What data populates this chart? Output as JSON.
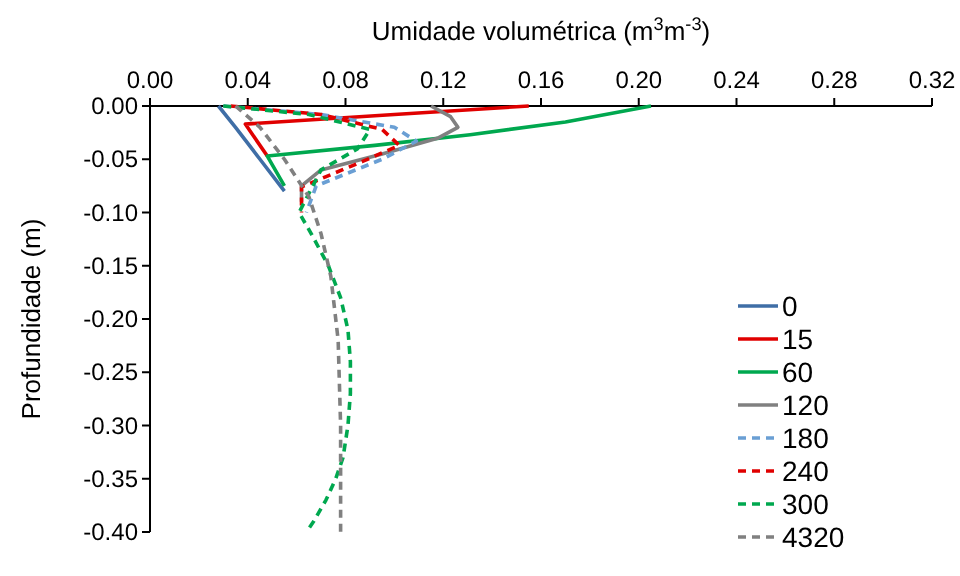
{
  "chart_data": {
    "type": "line",
    "xlabel": "Umidade volumétrica  (m$^{3}$m$^{-3}$)",
    "ylabel": "Profundidade  (m)",
    "xlim": [
      0,
      0.32
    ],
    "xticks": [
      {
        "value": 0,
        "label": "0.00"
      },
      {
        "value": 0.04,
        "label": "0.04"
      },
      {
        "value": 0.08,
        "label": "0.08"
      },
      {
        "value": 0.12,
        "label": "0.12"
      },
      {
        "value": 0.16,
        "label": "0.16"
      },
      {
        "value": 0.2,
        "label": "0.20"
      },
      {
        "value": 0.24,
        "label": "0.24"
      },
      {
        "value": 0.28,
        "label": "0.28"
      },
      {
        "value": 0.32,
        "label": "0.32"
      }
    ],
    "ylim": [
      -0.4,
      0
    ],
    "yticks": [
      {
        "value": 0,
        "label": "0.00"
      },
      {
        "value": -0.05,
        "label": "-0.05"
      },
      {
        "value": -0.1,
        "label": "-0.10"
      },
      {
        "value": -0.15,
        "label": "-0.15"
      },
      {
        "value": -0.2,
        "label": "-0.20"
      },
      {
        "value": -0.25,
        "label": "-0.25"
      },
      {
        "value": -0.3,
        "label": "-0.30"
      },
      {
        "value": -0.35,
        "label": "-0.35"
      },
      {
        "value": -0.4,
        "label": "-0.40"
      }
    ],
    "grid": false,
    "legend": "right",
    "marker": "none",
    "series": [
      {
        "name": "0",
        "color": "#3f6ea6",
        "line_style": "solid",
        "x": [
          0.028,
          0.035,
          0.045,
          0.055
        ],
        "values": [
          0,
          -0.02,
          -0.05,
          -0.08
        ]
      },
      {
        "name": "15",
        "color": "#e00000",
        "line_style": "solid",
        "x": [
          0.155,
          0.1,
          0.039,
          0.048
        ],
        "values": [
          0,
          -0.008,
          -0.017,
          -0.047
        ]
      },
      {
        "name": "60",
        "color": "#00a84f",
        "line_style": "solid",
        "x": [
          0.205,
          0.17,
          0.131,
          0.092,
          0.048,
          0.055
        ],
        "values": [
          0,
          -0.015,
          -0.027,
          -0.037,
          -0.047,
          -0.075
        ]
      },
      {
        "name": "120",
        "color": "#808080",
        "line_style": "solid",
        "x": [
          0.115,
          0.123,
          0.126,
          0.118,
          0.095,
          0.07,
          0.062,
          0.062
        ],
        "values": [
          0,
          -0.01,
          -0.02,
          -0.03,
          -0.045,
          -0.06,
          -0.075,
          -0.09
        ]
      },
      {
        "name": "180",
        "color": "#6a9fd4",
        "line_style": "dashed",
        "x": [
          0.03,
          0.07,
          0.1,
          0.109,
          0.095,
          0.068,
          0.064
        ],
        "values": [
          0,
          -0.008,
          -0.02,
          -0.033,
          -0.05,
          -0.075,
          -0.1
        ]
      },
      {
        "name": "240",
        "color": "#e00000",
        "line_style": "dashed",
        "x": [
          0.033,
          0.07,
          0.095,
          0.102,
          0.087,
          0.062,
          0.062
        ],
        "values": [
          0,
          -0.008,
          -0.022,
          -0.037,
          -0.052,
          -0.076,
          -0.1
        ]
      },
      {
        "name": "300",
        "color": "#00a84f",
        "line_style": "dashed",
        "x": [
          0.03,
          0.065,
          0.09,
          0.085,
          0.07,
          0.061,
          0.066,
          0.073,
          0.078,
          0.081,
          0.082,
          0.082,
          0.081,
          0.079,
          0.076,
          0.072,
          0.067,
          0.064
        ],
        "values": [
          0,
          -0.008,
          -0.022,
          -0.04,
          -0.06,
          -0.1,
          -0.12,
          -0.15,
          -0.18,
          -0.21,
          -0.24,
          -0.27,
          -0.3,
          -0.33,
          -0.35,
          -0.37,
          -0.39,
          -0.4
        ]
      },
      {
        "name": "4320",
        "color": "#808080",
        "line_style": "dashed",
        "x": [
          0.035,
          0.045,
          0.055,
          0.065,
          0.07,
          0.074,
          0.077,
          0.078,
          0.078
        ],
        "values": [
          0,
          -0.02,
          -0.05,
          -0.085,
          -0.12,
          -0.16,
          -0.22,
          -0.3,
          -0.4
        ]
      }
    ]
  }
}
